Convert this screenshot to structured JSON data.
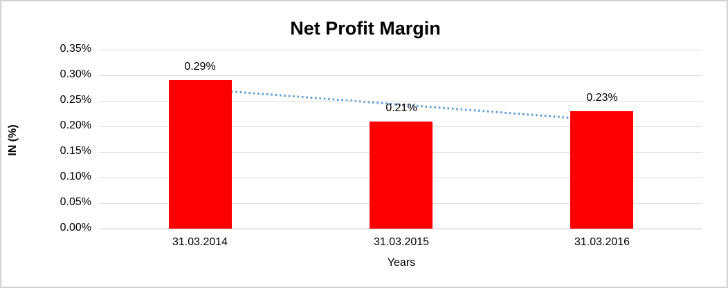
{
  "chart_data": {
    "type": "bar",
    "title": "Net Profit Margin",
    "xlabel": "Years",
    "ylabel": "IN (%)",
    "categories": [
      "31.03.2014",
      "31.03.2015",
      "31.03.2016"
    ],
    "values": [
      0.29,
      0.21,
      0.23
    ],
    "data_labels": [
      "0.29%",
      "0.21%",
      "0.23%"
    ],
    "ylim": [
      0,
      0.35
    ],
    "y_tick_step": 0.05,
    "y_ticks": [
      "0.00%",
      "0.05%",
      "0.10%",
      "0.15%",
      "0.20%",
      "0.25%",
      "0.30%",
      "0.35%"
    ],
    "grid": true,
    "legend": "none",
    "trendline": {
      "type": "linear",
      "start_value": 0.273,
      "end_value": 0.212,
      "style": "dotted"
    },
    "colors": {
      "bar": "#FF0000",
      "gridline": "#D9D9D9",
      "axis_line": "#C0C0C0",
      "trendline": "#5B9BD5",
      "text": "#000000"
    }
  }
}
